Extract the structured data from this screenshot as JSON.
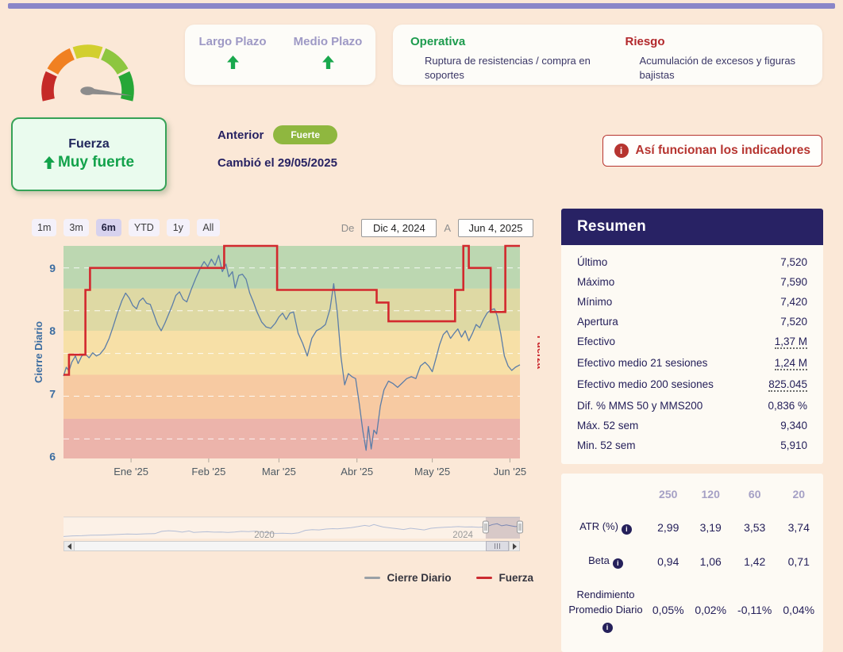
{
  "colors": {
    "page_bg": "#fbe8d7",
    "accent_bar": "#8a86c8",
    "positive_green": "#19a84d",
    "operativa_green": "#1d9b4e",
    "riesgo_red": "#b2282c",
    "button_red": "#b6342f",
    "navy": "#25205a",
    "badge_green": "#8fb73f",
    "close_line": "#5b7da8",
    "fuerza_line": "#d2292e"
  },
  "icons": {
    "info": "i"
  },
  "gauge": {
    "segments": [
      {
        "color": "#c52a28",
        "from": 193,
        "to": 155
      },
      {
        "color": "#f08021",
        "from": 151,
        "to": 113
      },
      {
        "color": "#d2cf2e",
        "from": 109,
        "to": 71
      },
      {
        "color": "#8dc63f",
        "from": 67,
        "to": 29
      },
      {
        "color": "#26a737",
        "from": 25,
        "to": -13
      }
    ],
    "needle_angle": -6,
    "needle_color": "#8c8c8c"
  },
  "trend": {
    "items": [
      {
        "label": "Largo Plazo",
        "direction": "up"
      },
      {
        "label": "Medio Plazo",
        "direction": "up"
      }
    ]
  },
  "signals": {
    "operativa": {
      "title": "Operativa",
      "desc": "Ruptura de resistencias / compra en soportes"
    },
    "riesgo": {
      "title": "Riesgo",
      "desc": "Acumulación de excesos y figuras bajistas"
    }
  },
  "status": {
    "name": "Fuerza",
    "value": "Muy fuerte",
    "previous_label": "Anterior",
    "previous_badge": "Fuerte",
    "changed": "Cambió el 29/05/2025"
  },
  "info_button": {
    "label": "Así funcionan los indicadores"
  },
  "range": {
    "buttons": [
      "1m",
      "3m",
      "6m",
      "YTD",
      "1y",
      "All"
    ],
    "selected": "6m",
    "from_label": "De",
    "from_value": "Dic 4, 2024",
    "to_label": "A",
    "to_value": "Jun 4, 2025"
  },
  "chart_data": [
    {
      "type": "line",
      "title": "",
      "x_range": [
        "Dic 4, 2024",
        "Jun 4, 2025"
      ],
      "ylabel_left": "Cierre Diario",
      "ylabel_right": "Fuerza",
      "ylim": [
        5.97,
        9.35
      ],
      "y_ticks": [
        6,
        7,
        8,
        9
      ],
      "gridlines": [
        9.0,
        8.32,
        7.64,
        6.96,
        6.28
      ],
      "grid_style": "white dashed on colored plot bands",
      "x_ticks": [
        {
          "label": "Ene '25",
          "f": 0.148
        },
        {
          "label": "Feb '25",
          "f": 0.318
        },
        {
          "label": "Mar '25",
          "f": 0.472
        },
        {
          "label": "Abr '25",
          "f": 0.643
        },
        {
          "label": "May '25",
          "f": 0.808
        },
        {
          "label": "Jun '25",
          "f": 0.978
        }
      ],
      "plot_bands": [
        {
          "from": 8.67,
          "to": 9.35,
          "color": "#bcd7b1"
        },
        {
          "from": 8.0,
          "to": 8.67,
          "color": "#ded9a4"
        },
        {
          "from": 7.3,
          "to": 8.0,
          "color": "#f7e0a7"
        },
        {
          "from": 6.6,
          "to": 7.3,
          "color": "#f7caa2"
        },
        {
          "from": 5.97,
          "to": 6.6,
          "color": "#ecb4ab"
        }
      ],
      "series": [
        {
          "name": "Cierre Diario",
          "color": "#5b7da8",
          "width": 1.3,
          "step": false,
          "axis": "left",
          "points": [
            [
              0.0,
              7.28
            ],
            [
              0.006,
              7.42
            ],
            [
              0.012,
              7.36
            ],
            [
              0.018,
              7.5
            ],
            [
              0.026,
              7.6
            ],
            [
              0.032,
              7.48
            ],
            [
              0.04,
              7.6
            ],
            [
              0.048,
              7.63
            ],
            [
              0.056,
              7.57
            ],
            [
              0.064,
              7.65
            ],
            [
              0.072,
              7.6
            ],
            [
              0.08,
              7.63
            ],
            [
              0.09,
              7.72
            ],
            [
              0.1,
              7.88
            ],
            [
              0.108,
              8.05
            ],
            [
              0.118,
              8.28
            ],
            [
              0.128,
              8.48
            ],
            [
              0.136,
              8.6
            ],
            [
              0.144,
              8.52
            ],
            [
              0.152,
              8.4
            ],
            [
              0.16,
              8.35
            ],
            [
              0.166,
              8.47
            ],
            [
              0.174,
              8.52
            ],
            [
              0.182,
              8.44
            ],
            [
              0.19,
              8.42
            ],
            [
              0.198,
              8.26
            ],
            [
              0.206,
              8.1
            ],
            [
              0.214,
              8.0
            ],
            [
              0.222,
              8.12
            ],
            [
              0.23,
              8.26
            ],
            [
              0.238,
              8.4
            ],
            [
              0.246,
              8.56
            ],
            [
              0.254,
              8.62
            ],
            [
              0.262,
              8.5
            ],
            [
              0.27,
              8.46
            ],
            [
              0.28,
              8.66
            ],
            [
              0.29,
              8.84
            ],
            [
              0.3,
              9.0
            ],
            [
              0.308,
              9.1
            ],
            [
              0.316,
              9.02
            ],
            [
              0.324,
              9.14
            ],
            [
              0.332,
              9.04
            ],
            [
              0.34,
              9.2
            ],
            [
              0.348,
              8.94
            ],
            [
              0.356,
              9.06
            ],
            [
              0.362,
              8.86
            ],
            [
              0.37,
              8.94
            ],
            [
              0.376,
              8.68
            ],
            [
              0.384,
              8.88
            ],
            [
              0.392,
              8.9
            ],
            [
              0.4,
              8.82
            ],
            [
              0.408,
              8.6
            ],
            [
              0.416,
              8.46
            ],
            [
              0.424,
              8.3
            ],
            [
              0.434,
              8.14
            ],
            [
              0.444,
              8.06
            ],
            [
              0.454,
              8.04
            ],
            [
              0.464,
              8.12
            ],
            [
              0.472,
              8.22
            ],
            [
              0.48,
              8.28
            ],
            [
              0.488,
              8.18
            ],
            [
              0.496,
              8.28
            ],
            [
              0.504,
              8.3
            ],
            [
              0.514,
              7.96
            ],
            [
              0.524,
              7.8
            ],
            [
              0.534,
              7.6
            ],
            [
              0.544,
              7.88
            ],
            [
              0.554,
              8.0
            ],
            [
              0.564,
              8.04
            ],
            [
              0.574,
              8.1
            ],
            [
              0.584,
              8.35
            ],
            [
              0.592,
              8.75
            ],
            [
              0.6,
              8.28
            ],
            [
              0.608,
              7.58
            ],
            [
              0.616,
              7.14
            ],
            [
              0.624,
              7.32
            ],
            [
              0.632,
              7.27
            ],
            [
              0.64,
              7.24
            ],
            [
              0.648,
              6.84
            ],
            [
              0.656,
              6.4
            ],
            [
              0.663,
              6.1
            ],
            [
              0.668,
              6.48
            ],
            [
              0.674,
              6.12
            ],
            [
              0.68,
              6.42
            ],
            [
              0.686,
              6.36
            ],
            [
              0.694,
              6.8
            ],
            [
              0.702,
              7.06
            ],
            [
              0.712,
              7.2
            ],
            [
              0.722,
              7.16
            ],
            [
              0.732,
              7.1
            ],
            [
              0.742,
              7.17
            ],
            [
              0.752,
              7.24
            ],
            [
              0.762,
              7.27
            ],
            [
              0.772,
              7.24
            ],
            [
              0.782,
              7.44
            ],
            [
              0.792,
              7.5
            ],
            [
              0.8,
              7.44
            ],
            [
              0.808,
              7.35
            ],
            [
              0.816,
              7.56
            ],
            [
              0.824,
              7.78
            ],
            [
              0.832,
              7.94
            ],
            [
              0.84,
              8.0
            ],
            [
              0.848,
              7.88
            ],
            [
              0.856,
              7.96
            ],
            [
              0.864,
              8.03
            ],
            [
              0.872,
              7.9
            ],
            [
              0.88,
              8.0
            ],
            [
              0.888,
              7.84
            ],
            [
              0.896,
              7.96
            ],
            [
              0.904,
              8.1
            ],
            [
              0.912,
              8.05
            ],
            [
              0.92,
              8.18
            ],
            [
              0.928,
              8.28
            ],
            [
              0.936,
              8.33
            ],
            [
              0.944,
              8.35
            ],
            [
              0.95,
              8.24
            ],
            [
              0.958,
              7.95
            ],
            [
              0.966,
              7.6
            ],
            [
              0.974,
              7.44
            ],
            [
              0.982,
              7.37
            ],
            [
              0.99,
              7.42
            ],
            [
              1.0,
              7.46
            ]
          ]
        },
        {
          "name": "Fuerza",
          "color": "#d2292e",
          "width": 2.6,
          "step": true,
          "axis": "right",
          "note": "step indicator, values estimated in left-axis visual units",
          "points": [
            [
              0.0,
              7.3
            ],
            [
              0.012,
              7.62
            ],
            [
              0.048,
              8.65
            ],
            [
              0.058,
              9.0
            ],
            [
              0.352,
              9.35
            ],
            [
              0.468,
              8.65
            ],
            [
              0.686,
              8.45
            ],
            [
              0.712,
              8.15
            ],
            [
              0.858,
              8.65
            ],
            [
              0.876,
              9.35
            ],
            [
              0.888,
              9.0
            ],
            [
              0.936,
              8.3
            ],
            [
              0.968,
              9.35
            ],
            [
              1.0,
              9.35
            ]
          ]
        }
      ]
    },
    {
      "type": "line",
      "role": "navigator",
      "color": "#8293bb",
      "selection": [
        0.925,
        1.0
      ],
      "x_tick_labels": [
        {
          "label": "2020",
          "f": 0.44
        },
        {
          "label": "2024",
          "f": 0.875
        }
      ],
      "points": [
        [
          0.0,
          0.1
        ],
        [
          0.02,
          0.13
        ],
        [
          0.04,
          0.14
        ],
        [
          0.06,
          0.16
        ],
        [
          0.08,
          0.17
        ],
        [
          0.1,
          0.18
        ],
        [
          0.12,
          0.2
        ],
        [
          0.14,
          0.22
        ],
        [
          0.16,
          0.21
        ],
        [
          0.18,
          0.23
        ],
        [
          0.2,
          0.24
        ],
        [
          0.215,
          0.35
        ],
        [
          0.23,
          0.38
        ],
        [
          0.245,
          0.36
        ],
        [
          0.26,
          0.31
        ],
        [
          0.275,
          0.37
        ],
        [
          0.285,
          0.3
        ],
        [
          0.3,
          0.32
        ],
        [
          0.315,
          0.33
        ],
        [
          0.33,
          0.31
        ],
        [
          0.345,
          0.32
        ],
        [
          0.36,
          0.3
        ],
        [
          0.375,
          0.32
        ],
        [
          0.39,
          0.35
        ],
        [
          0.405,
          0.34
        ],
        [
          0.42,
          0.36
        ],
        [
          0.435,
          0.32
        ],
        [
          0.45,
          0.28
        ],
        [
          0.465,
          0.25
        ],
        [
          0.48,
          0.26
        ],
        [
          0.5,
          0.24
        ],
        [
          0.515,
          0.28
        ],
        [
          0.53,
          0.4
        ],
        [
          0.545,
          0.43
        ],
        [
          0.56,
          0.42
        ],
        [
          0.575,
          0.46
        ],
        [
          0.59,
          0.48
        ],
        [
          0.6,
          0.47
        ],
        [
          0.615,
          0.5
        ],
        [
          0.63,
          0.53
        ],
        [
          0.645,
          0.58
        ],
        [
          0.66,
          0.64
        ],
        [
          0.67,
          0.6
        ],
        [
          0.68,
          0.68
        ],
        [
          0.69,
          0.62
        ],
        [
          0.7,
          0.56
        ],
        [
          0.715,
          0.52
        ],
        [
          0.73,
          0.48
        ],
        [
          0.745,
          0.44
        ],
        [
          0.76,
          0.5
        ],
        [
          0.775,
          0.46
        ],
        [
          0.79,
          0.42
        ],
        [
          0.805,
          0.5
        ],
        [
          0.82,
          0.53
        ],
        [
          0.835,
          0.55
        ],
        [
          0.85,
          0.56
        ],
        [
          0.865,
          0.58
        ],
        [
          0.88,
          0.56
        ],
        [
          0.895,
          0.57
        ],
        [
          0.91,
          0.55
        ],
        [
          0.925,
          0.57
        ],
        [
          0.94,
          0.68
        ],
        [
          0.95,
          0.72
        ],
        [
          0.96,
          0.62
        ],
        [
          0.97,
          0.66
        ],
        [
          0.98,
          0.62
        ],
        [
          0.99,
          0.58
        ],
        [
          1.0,
          0.6
        ]
      ]
    }
  ],
  "legend": {
    "items": [
      {
        "label": "Cierre Diario",
        "color": "#9aa0a6"
      },
      {
        "label": "Fuerza",
        "color": "#cc2b30"
      }
    ]
  },
  "summary": {
    "title": "Resumen",
    "rows": [
      {
        "label": "Último",
        "value": "7,520"
      },
      {
        "label": "Máximo",
        "value": "7,590"
      },
      {
        "label": "Mínimo",
        "value": "7,420"
      },
      {
        "label": "Apertura",
        "value": "7,520"
      },
      {
        "label": "Efectivo",
        "value": "1,37 M"
      },
      {
        "label": "Efectivo medio 21 sesiones",
        "value": "1,24 M"
      },
      {
        "label": "Efectivo medio 200 sesiones",
        "value": "825.045"
      },
      {
        "label": "Dif. % MMS 50 y MMS200",
        "value": "0,836 %"
      },
      {
        "label": "Máx. 52 sem",
        "value": "9,340"
      },
      {
        "label": "Min. 52 sem",
        "value": "5,910"
      }
    ]
  },
  "stats": {
    "columns": [
      "250",
      "120",
      "60",
      "20"
    ],
    "rows": [
      {
        "label": "ATR (%)",
        "info": true,
        "values": [
          "2,99",
          "3,19",
          "3,53",
          "3,74"
        ]
      },
      {
        "label": "Beta",
        "info": true,
        "values": [
          "0,94",
          "1,06",
          "1,42",
          "0,71"
        ]
      },
      {
        "label": "Rendimiento Promedio Diario",
        "info": true,
        "values": [
          "0,05%",
          "0,02%",
          "-0,11%",
          "0,04%"
        ]
      }
    ]
  }
}
